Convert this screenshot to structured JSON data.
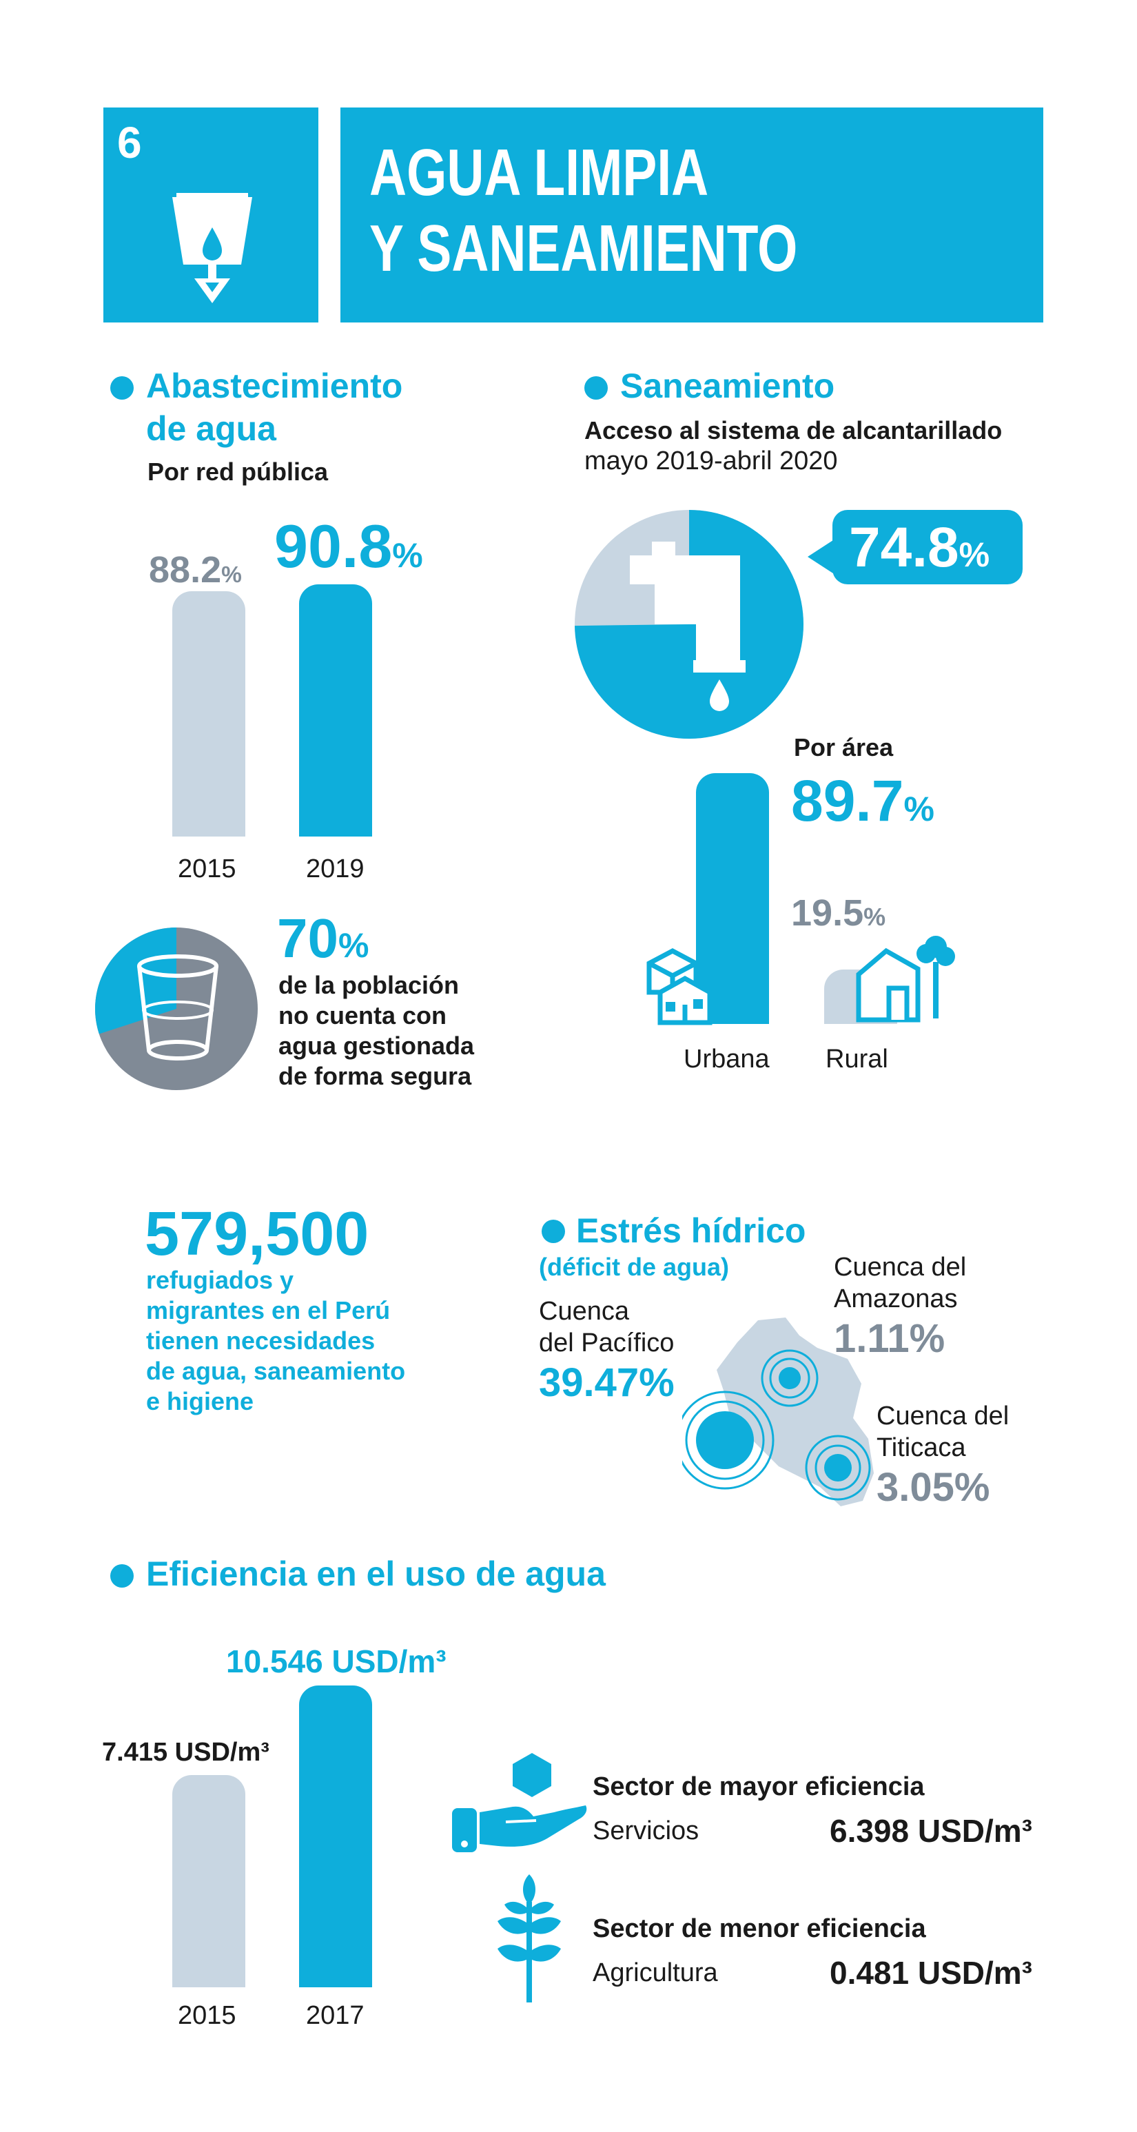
{
  "header": {
    "goal_number": "6",
    "title_line1": "AGUA LIMPIA",
    "title_line2": "Y SANEAMIENTO",
    "icon": "water-cup-icon",
    "color": "#0eaedb"
  },
  "water_supply": {
    "title_line1": "Abastecimiento",
    "title_line2": "de agua",
    "subtitle": "Por red pública",
    "chart_data": {
      "type": "bar",
      "categories": [
        "2015",
        "2019"
      ],
      "values": [
        88.2,
        90.8
      ],
      "labels": [
        "88.2",
        "90.8"
      ],
      "unit": "%"
    },
    "safe_water": {
      "value": "70",
      "unit": "%",
      "fraction": 0.7,
      "text_line1": "de la población",
      "text_line2": "no cuenta con",
      "text_line3": "agua gestionada",
      "text_line4": "de forma segura",
      "icon": "glass-icon"
    }
  },
  "sanitation": {
    "title": "Saneamiento",
    "subtitle": "Acceso al sistema de alcantarillado",
    "period": "mayo 2019-abril 2020",
    "total": {
      "value": "74.8",
      "unit": "%",
      "fraction": 0.748,
      "icon": "faucet-icon"
    },
    "by_area_title": "Por área",
    "chart_data": {
      "type": "bar",
      "categories": [
        "Urbana",
        "Rural"
      ],
      "values": [
        89.7,
        19.5
      ],
      "labels": [
        "89.7",
        "19.5"
      ],
      "unit": "%"
    },
    "icons": [
      "buildings-icon",
      "house-icon"
    ]
  },
  "refugees": {
    "number": "579,500",
    "text_line1": "refugiados y",
    "text_line2": "migrantes en el Perú",
    "text_line3": "tienen necesidades",
    "text_line4": "de agua, saneamiento",
    "text_line5": "e higiene"
  },
  "water_stress": {
    "title": "Estrés hídrico",
    "subtitle": "(déficit de agua)",
    "basins": [
      {
        "name_line1": "Cuenca",
        "name_line2": "del Pacífico",
        "value": "39.47%"
      },
      {
        "name_line1": "Cuenca del",
        "name_line2": "Amazonas",
        "value": "1.11%"
      },
      {
        "name_line1": "Cuenca del",
        "name_line2": "Titicaca",
        "value": "3.05%"
      }
    ],
    "map_icon": "peru-map-icon"
  },
  "efficiency": {
    "title": "Eficiencia en el uso de agua",
    "chart_data": {
      "type": "bar",
      "categories": [
        "2015",
        "2017"
      ],
      "values": [
        7.415,
        10.546
      ],
      "labels": [
        "7.415 USD/m³",
        "10.546 USD/m³"
      ]
    },
    "high": {
      "title": "Sector de mayor eficiencia",
      "sector": "Servicios",
      "value": "6.398 USD/m³",
      "icon": "hand-hexagon-icon"
    },
    "low": {
      "title": "Sector de menor eficiencia",
      "sector": "Agricultura",
      "value": "0.481 USD/m³",
      "icon": "wheat-icon"
    }
  }
}
